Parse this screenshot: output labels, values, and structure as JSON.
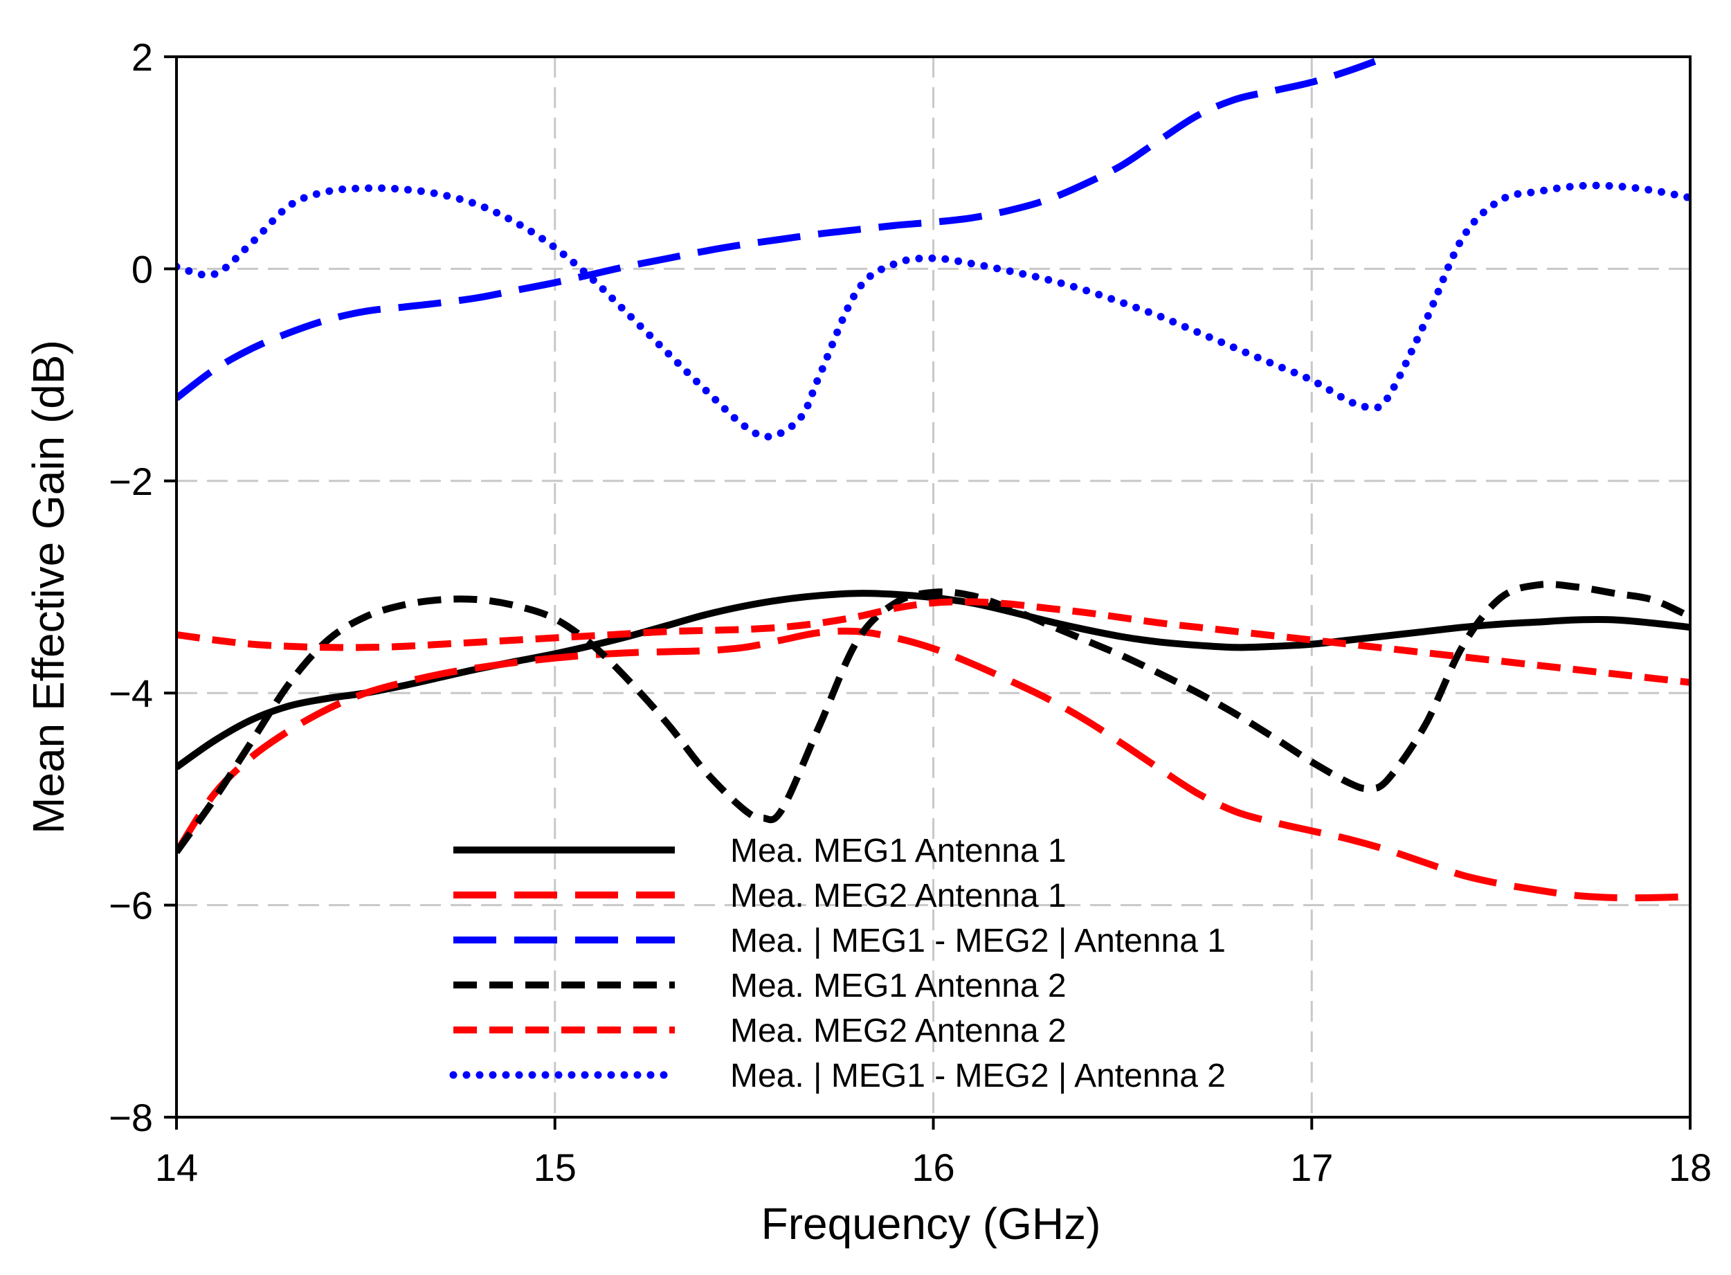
{
  "chart_data": {
    "type": "line",
    "title": "",
    "xlabel": "Frequency (GHz)",
    "ylabel": "Mean Effective Gain (dB)",
    "xlim": [
      14,
      18
    ],
    "ylim": [
      -8,
      2
    ],
    "xticks": [
      14,
      15,
      16,
      17,
      18
    ],
    "yticks": [
      2,
      0,
      -2,
      -4,
      -6,
      -8
    ],
    "xtick_labels": [
      "14",
      "15",
      "16",
      "17",
      "18"
    ],
    "ytick_labels": [
      "2",
      "0",
      "−2",
      "−4",
      "−6",
      "−8"
    ],
    "grid": true,
    "legend_position": "bottom-center",
    "series": [
      {
        "name": "Mea. MEG1 Antenna 1",
        "color": "#000000",
        "style": "solid",
        "x": [
          14.0,
          14.1,
          14.2,
          14.3,
          14.4,
          14.5,
          14.6,
          14.7,
          14.8,
          14.9,
          15.0,
          15.1,
          15.2,
          15.3,
          15.4,
          15.5,
          15.6,
          15.7,
          15.8,
          15.9,
          16.0,
          16.1,
          16.2,
          16.3,
          16.4,
          16.5,
          16.6,
          16.7,
          16.8,
          16.9,
          17.0,
          17.1,
          17.2,
          17.3,
          17.4,
          17.5,
          17.6,
          17.7,
          17.8,
          17.9,
          18.0
        ],
        "y": [
          -4.7,
          -4.45,
          -4.25,
          -4.12,
          -4.05,
          -4.0,
          -3.93,
          -3.85,
          -3.77,
          -3.7,
          -3.63,
          -3.55,
          -3.46,
          -3.36,
          -3.26,
          -3.18,
          -3.12,
          -3.08,
          -3.06,
          -3.07,
          -3.1,
          -3.15,
          -3.23,
          -3.32,
          -3.4,
          -3.47,
          -3.52,
          -3.55,
          -3.57,
          -3.56,
          -3.54,
          -3.5,
          -3.46,
          -3.42,
          -3.38,
          -3.35,
          -3.33,
          -3.31,
          -3.31,
          -3.34,
          -3.38
        ]
      },
      {
        "name": "Mea. MEG2 Antenna 1",
        "color": "#ff0000",
        "style": "long-dash",
        "x": [
          14.0,
          14.1,
          14.2,
          14.3,
          14.4,
          14.5,
          14.6,
          14.7,
          14.8,
          14.9,
          15.0,
          15.1,
          15.2,
          15.3,
          15.4,
          15.5,
          15.6,
          15.7,
          15.8,
          15.9,
          16.0,
          16.1,
          16.2,
          16.3,
          16.4,
          16.5,
          16.6,
          16.7,
          16.8,
          16.9,
          17.0,
          17.1,
          17.2,
          17.3,
          17.4,
          17.5,
          17.6,
          17.7,
          17.8,
          17.9,
          18.0
        ],
        "y": [
          -5.5,
          -4.95,
          -4.6,
          -4.35,
          -4.15,
          -4.0,
          -3.9,
          -3.82,
          -3.76,
          -3.71,
          -3.67,
          -3.64,
          -3.62,
          -3.61,
          -3.6,
          -3.57,
          -3.5,
          -3.43,
          -3.42,
          -3.48,
          -3.58,
          -3.72,
          -3.88,
          -4.05,
          -4.25,
          -4.48,
          -4.72,
          -4.95,
          -5.12,
          -5.22,
          -5.3,
          -5.38,
          -5.48,
          -5.6,
          -5.72,
          -5.8,
          -5.86,
          -5.91,
          -5.93,
          -5.93,
          -5.92
        ]
      },
      {
        "name": "Mea. | MEG1 - MEG2 | Antenna 1",
        "color": "#0000ff",
        "style": "long-dash",
        "x": [
          14.0,
          14.1,
          14.2,
          14.3,
          14.4,
          14.5,
          14.6,
          14.7,
          14.8,
          14.9,
          15.0,
          15.1,
          15.2,
          15.3,
          15.4,
          15.5,
          15.6,
          15.7,
          15.8,
          15.9,
          16.0,
          16.1,
          16.2,
          16.3,
          16.4,
          16.5,
          16.6,
          16.7,
          16.8,
          16.9,
          17.0,
          17.1,
          17.2
        ],
        "y": [
          -1.22,
          -0.95,
          -0.75,
          -0.6,
          -0.48,
          -0.4,
          -0.36,
          -0.32,
          -0.27,
          -0.2,
          -0.13,
          -0.05,
          0.03,
          0.1,
          0.17,
          0.23,
          0.28,
          0.33,
          0.37,
          0.41,
          0.44,
          0.48,
          0.55,
          0.65,
          0.8,
          0.98,
          1.22,
          1.45,
          1.6,
          1.68,
          1.76,
          1.87,
          2.0
        ]
      },
      {
        "name": "Mea. MEG1 Antenna 2",
        "color": "#000000",
        "style": "medium-dash",
        "x": [
          14.0,
          14.1,
          14.2,
          14.3,
          14.4,
          14.5,
          14.6,
          14.7,
          14.8,
          14.9,
          15.0,
          15.1,
          15.2,
          15.3,
          15.4,
          15.5,
          15.55,
          15.6,
          15.7,
          15.8,
          15.9,
          16.0,
          16.1,
          16.2,
          16.3,
          16.4,
          16.5,
          16.6,
          16.7,
          16.8,
          16.9,
          17.0,
          17.1,
          17.15,
          17.2,
          17.3,
          17.4,
          17.5,
          17.6,
          17.7,
          17.8,
          17.9,
          18.0
        ],
        "y": [
          -5.5,
          -5.0,
          -4.45,
          -3.9,
          -3.5,
          -3.28,
          -3.17,
          -3.12,
          -3.12,
          -3.18,
          -3.3,
          -3.55,
          -3.9,
          -4.3,
          -4.75,
          -5.1,
          -5.18,
          -5.1,
          -4.3,
          -3.5,
          -3.15,
          -3.05,
          -3.08,
          -3.2,
          -3.35,
          -3.5,
          -3.65,
          -3.82,
          -4.0,
          -4.2,
          -4.42,
          -4.65,
          -4.85,
          -4.9,
          -4.82,
          -4.3,
          -3.55,
          -3.1,
          -2.98,
          -3.0,
          -3.06,
          -3.12,
          -3.28
        ]
      },
      {
        "name": "Mea. MEG2 Antenna 2",
        "color": "#ff0000",
        "style": "medium-dash",
        "x": [
          14.0,
          14.1,
          14.2,
          14.3,
          14.4,
          14.5,
          14.6,
          14.7,
          14.8,
          14.9,
          15.0,
          15.1,
          15.2,
          15.3,
          15.4,
          15.5,
          15.6,
          15.7,
          15.8,
          15.9,
          16.0,
          16.1,
          16.2,
          16.3,
          16.4,
          16.5,
          16.6,
          16.7,
          16.8,
          16.9,
          17.0,
          17.1,
          17.2,
          17.3,
          17.4,
          17.5,
          17.6,
          17.7,
          17.8,
          17.9,
          18.0
        ],
        "y": [
          -3.45,
          -3.5,
          -3.54,
          -3.56,
          -3.57,
          -3.57,
          -3.56,
          -3.54,
          -3.52,
          -3.5,
          -3.48,
          -3.46,
          -3.44,
          -3.42,
          -3.41,
          -3.4,
          -3.38,
          -3.34,
          -3.28,
          -3.2,
          -3.15,
          -3.14,
          -3.16,
          -3.2,
          -3.24,
          -3.29,
          -3.34,
          -3.38,
          -3.42,
          -3.46,
          -3.5,
          -3.54,
          -3.58,
          -3.62,
          -3.66,
          -3.7,
          -3.74,
          -3.78,
          -3.82,
          -3.86,
          -3.9
        ]
      },
      {
        "name": "Mea. | MEG1 - MEG2 | Antenna 2",
        "color": "#0000ff",
        "style": "dotted",
        "x": [
          14.0,
          14.1,
          14.2,
          14.3,
          14.4,
          14.5,
          14.6,
          14.7,
          14.8,
          14.9,
          15.0,
          15.1,
          15.2,
          15.3,
          15.4,
          15.5,
          15.57,
          15.65,
          15.7,
          15.8,
          15.9,
          16.0,
          16.1,
          16.2,
          16.3,
          16.4,
          16.5,
          16.6,
          16.7,
          16.8,
          16.9,
          17.0,
          17.1,
          17.15,
          17.2,
          17.3,
          17.4,
          17.5,
          17.6,
          17.7,
          17.8,
          17.9,
          18.0
        ],
        "y": [
          0.02,
          -0.05,
          0.25,
          0.6,
          0.73,
          0.76,
          0.75,
          0.7,
          0.6,
          0.43,
          0.2,
          -0.1,
          -0.45,
          -0.8,
          -1.15,
          -1.48,
          -1.58,
          -1.4,
          -1.0,
          -0.2,
          0.05,
          0.1,
          0.05,
          -0.02,
          -0.1,
          -0.2,
          -0.32,
          -0.45,
          -0.6,
          -0.75,
          -0.9,
          -1.05,
          -1.25,
          -1.3,
          -1.22,
          -0.5,
          0.3,
          0.65,
          0.73,
          0.78,
          0.78,
          0.74,
          0.67
        ]
      }
    ]
  }
}
